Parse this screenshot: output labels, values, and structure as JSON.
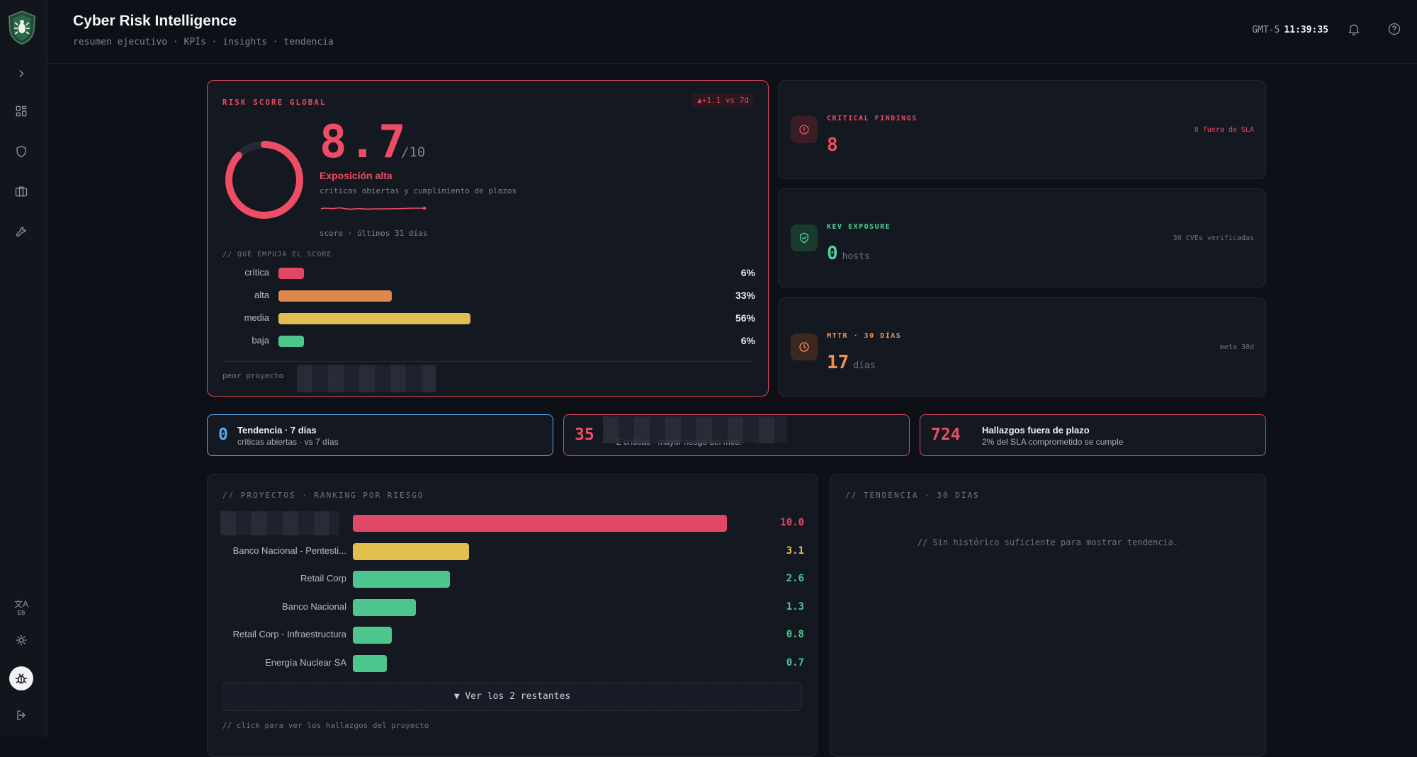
{
  "app": {
    "title": "Cyber Risk Intelligence",
    "subtitle": "resumen ejecutivo · KPIs · insights · tendencia",
    "timezone": "GMT-5",
    "time": "11:39:35",
    "language": "ES"
  },
  "risk_score": {
    "label": "RISK SCORE GLOBAL",
    "delta": "▲+1.1 vs 7d",
    "score": "8.7",
    "score_max": "/10",
    "score_value": 8.7,
    "level": "Exposición alta",
    "level_sub": "críticas abiertas y cumplimiento de plazos",
    "spark_caption": "score · últimos 31 días",
    "drivers_title": "// QUÉ EMPUJA EL SCORE",
    "drivers": [
      {
        "name": "crítica",
        "pct": "6%",
        "value": 6,
        "color": "#e04866"
      },
      {
        "name": "alta",
        "pct": "33%",
        "value": 33,
        "color": "#e0874d"
      },
      {
        "name": "media",
        "pct": "56%",
        "value": 56,
        "color": "#e2be4f"
      },
      {
        "name": "baja",
        "pct": "6%",
        "value": 6,
        "color": "#4dc68e"
      }
    ],
    "worst_label": "peor proyecto"
  },
  "kpis": [
    {
      "label": "CRITICAL FINDINGS",
      "value": "8",
      "unit": "",
      "note": "8 fuera de SLA",
      "color": "#ee4d65",
      "note_color": "#ee4d65",
      "icon": "alert-circle-icon"
    },
    {
      "label": "KEV EXPOSURE",
      "value": "0",
      "unit": "hosts",
      "note": "30 CVEs verificadas",
      "color": "#4fd39a",
      "note_color": "#6e7484",
      "icon": "shield-check-icon"
    },
    {
      "label": "MTTR · 30 DÍAS",
      "value": "17",
      "unit": "días",
      "note": "meta 30d",
      "color": "#f0914f",
      "note_color": "#6e7484",
      "icon": "clock-icon"
    }
  ],
  "insights": [
    {
      "num": "0",
      "title": "Tendencia · 7 días",
      "sub": "críticas abiertas · vs 7 días",
      "color": "#5aa7e8"
    },
    {
      "num": "35",
      "title": "",
      "sub": "2 críticas · mayor riesgo del mes.",
      "color": "#ee4d65"
    },
    {
      "num": "724",
      "title": "Hallazgos fuera de plazo",
      "sub": "2% del SLA comprometido se cumple",
      "color": "#ee4d65"
    }
  ],
  "projects": {
    "title": "// PROYECTOS · RANKING POR RIESGO",
    "rows": [
      {
        "name": "",
        "value": "10.0",
        "score": 10.0,
        "color": "#e04866"
      },
      {
        "name": "Banco Nacional - Pentesti...",
        "value": "3.1",
        "score": 3.1,
        "color": "#e2be4f"
      },
      {
        "name": "Retail Corp",
        "value": "2.6",
        "score": 2.6,
        "color": "#4dc68e"
      },
      {
        "name": "Banco Nacional",
        "value": "1.3",
        "score": 1.3,
        "color": "#4dc68e"
      },
      {
        "name": "Retail Corp - Infraestructura",
        "value": "0.8",
        "score": 0.8,
        "color": "#4dc68e"
      },
      {
        "name": "Energía Nuclear SA",
        "value": "0.7",
        "score": 0.7,
        "color": "#4dc68e"
      }
    ],
    "more_label": "▼ Ver los 2 restantes",
    "hint": "// click para ver los hallazgos del proyecto"
  },
  "trend": {
    "title": "// TENDENCIA · 30 DÍAS",
    "empty_msg": "// Sin histórico suficiente para mostrar tendencia."
  }
}
